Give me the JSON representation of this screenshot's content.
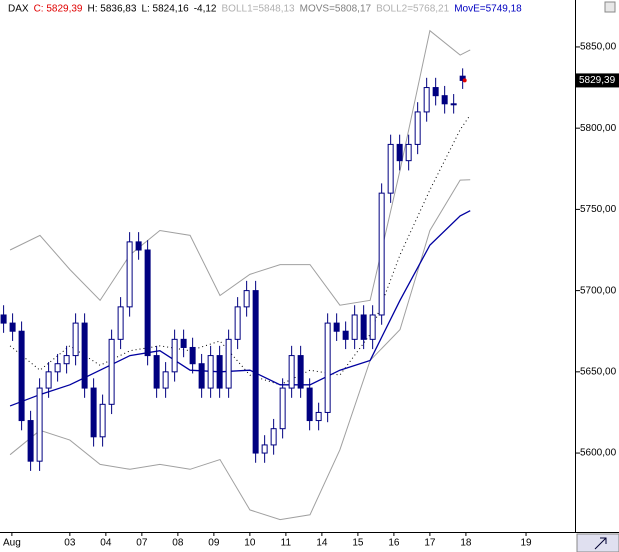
{
  "chart_data": {
    "type": "candlestick",
    "header": [
      "DAX",
      "C: 5829,39",
      "H: 5836,83",
      "L: 5824,16",
      "-4,12",
      "BOLL1=5848,13",
      "MOVS=5808,17",
      "BOLL2=5768,21",
      "MovE=5749,18"
    ],
    "x": [
      1,
      3.5,
      6,
      8.5,
      11,
      13.5,
      16,
      18.5,
      21,
      23.5,
      26,
      28.5,
      31,
      33.5,
      36,
      38.5,
      41,
      43.5,
      46,
      48.5,
      51,
      53.5,
      56,
      58.5,
      61,
      63.5,
      66,
      68.5,
      71,
      73.5,
      76,
      78.5,
      81,
      83.5,
      86,
      88.5,
      91,
      93.5,
      96,
      98.5,
      101,
      103.5,
      106,
      108.5,
      111,
      113.5,
      116,
      118.5,
      121,
      123.5,
      126,
      128.5
    ],
    "open": [
      5685,
      5680,
      5675,
      5620,
      5595,
      5640,
      5650,
      5655,
      5660,
      5680,
      5640,
      5610,
      5630,
      5670,
      5690,
      5730,
      5725,
      5660,
      5640,
      5650,
      5670,
      5665,
      5655,
      5640,
      5660,
      5640,
      5670,
      5690,
      5700,
      5600,
      5605,
      5615,
      5640,
      5660,
      5640,
      5620,
      5625,
      5680,
      5675,
      5670,
      5685,
      5670,
      5685,
      5760,
      5790,
      5780,
      5790,
      5810,
      5825,
      5820,
      5815,
      5832
    ],
    "high": [
      5691,
      5686,
      5681,
      5626,
      5646,
      5656,
      5661,
      5666,
      5686,
      5686,
      5646,
      5636,
      5676,
      5696,
      5736,
      5736,
      5731,
      5666,
      5656,
      5676,
      5676,
      5671,
      5661,
      5666,
      5666,
      5676,
      5696,
      5706,
      5706,
      5611,
      5621,
      5646,
      5666,
      5666,
      5646,
      5631,
      5686,
      5686,
      5681,
      5691,
      5691,
      5691,
      5766,
      5796,
      5796,
      5796,
      5816,
      5831,
      5831,
      5826,
      5821,
      5836.83
    ],
    "low": [
      5674,
      5669,
      5614,
      5589,
      5589,
      5634,
      5644,
      5649,
      5654,
      5634,
      5604,
      5604,
      5624,
      5664,
      5684,
      5719,
      5654,
      5634,
      5634,
      5644,
      5659,
      5649,
      5634,
      5634,
      5634,
      5634,
      5664,
      5684,
      5594,
      5594,
      5599,
      5609,
      5634,
      5634,
      5614,
      5614,
      5619,
      5669,
      5664,
      5664,
      5664,
      5664,
      5679,
      5754,
      5774,
      5774,
      5784,
      5804,
      5814,
      5809,
      5809,
      5824.16
    ],
    "close": [
      5680,
      5675,
      5620,
      5595,
      5640,
      5650,
      5655,
      5660,
      5680,
      5640,
      5610,
      5630,
      5670,
      5690,
      5730,
      5725,
      5660,
      5640,
      5650,
      5670,
      5665,
      5655,
      5640,
      5660,
      5640,
      5670,
      5690,
      5700,
      5600,
      5605,
      5615,
      5640,
      5660,
      5640,
      5620,
      5625,
      5680,
      5675,
      5670,
      5685,
      5670,
      5685,
      5760,
      5790,
      5780,
      5790,
      5810,
      5825,
      5820,
      5815,
      5815,
      5829.39
    ],
    "color": "#000080",
    "line_x": [
      2.8,
      11.1,
      19.4,
      27.8,
      36.1,
      44.4,
      52.8,
      61.1,
      69.4,
      77.8,
      86.1,
      94.4,
      102.8,
      111.1,
      119.4,
      127.8,
      130.6
    ],
    "lines": [
      {
        "color": "#a0a0a0",
        "style": "solid",
        "values": [
          5725,
          5734,
          5713,
          5694,
          5722,
          5737,
          5734,
          5697,
          5710,
          5716,
          5716,
          5691,
          5694,
          5774,
          5860,
          5845,
          5848.13
        ]
      },
      {
        "color": "#000000",
        "style": "dotted",
        "values": [
          5666,
          5651,
          5666,
          5654,
          5663,
          5666,
          5663,
          5669,
          5648,
          5642,
          5651,
          5648,
          5673,
          5722,
          5762,
          5799,
          5808.17
        ]
      },
      {
        "color": "#a0a0a0",
        "style": "solid",
        "values": [
          5599,
          5614,
          5608,
          5593,
          5590,
          5593,
          5590,
          5596,
          5565,
          5559,
          5562,
          5602,
          5657,
          5676,
          5737,
          5768,
          5768.21
        ]
      },
      {
        "color": "#0000a0",
        "style": "solid",
        "values": [
          5629,
          5636,
          5642,
          5651,
          5660,
          5663,
          5651,
          5650,
          5651,
          5642,
          5642,
          5651,
          5657,
          5694,
          5728,
          5746,
          5749.18
        ]
      }
    ],
    "last_price": {
      "value": 5829.39,
      "label": "5829,39"
    },
    "xlim": [
      0,
      159.7
    ],
    "ylim": [
      5551.4,
      5878.9
    ],
    "xticks": [
      {
        "value": 3.3,
        "label": "Aug"
      },
      {
        "value": 19.4,
        "label": "03"
      },
      {
        "value": 29.4,
        "label": "04"
      },
      {
        "value": 39.4,
        "label": "07"
      },
      {
        "value": 49.4,
        "label": "08"
      },
      {
        "value": 59.4,
        "label": "09"
      },
      {
        "value": 69.4,
        "label": "10"
      },
      {
        "value": 79.4,
        "label": "11"
      },
      {
        "value": 89.4,
        "label": "14"
      },
      {
        "value": 99.4,
        "label": "15"
      },
      {
        "value": 109.4,
        "label": "16"
      },
      {
        "value": 119.4,
        "label": "17"
      },
      {
        "value": 129.4,
        "label": "18"
      },
      {
        "value": 146.1,
        "label": "19"
      }
    ],
    "yticks": [
      {
        "value": 5600,
        "label": "5600,00"
      },
      {
        "value": 5650,
        "label": "5650,00"
      },
      {
        "value": 5700,
        "label": "5700,00"
      },
      {
        "value": 5750,
        "label": "5750,00"
      },
      {
        "value": 5800,
        "label": "5800,00"
      },
      {
        "value": 5850,
        "label": "5850,00"
      }
    ]
  }
}
